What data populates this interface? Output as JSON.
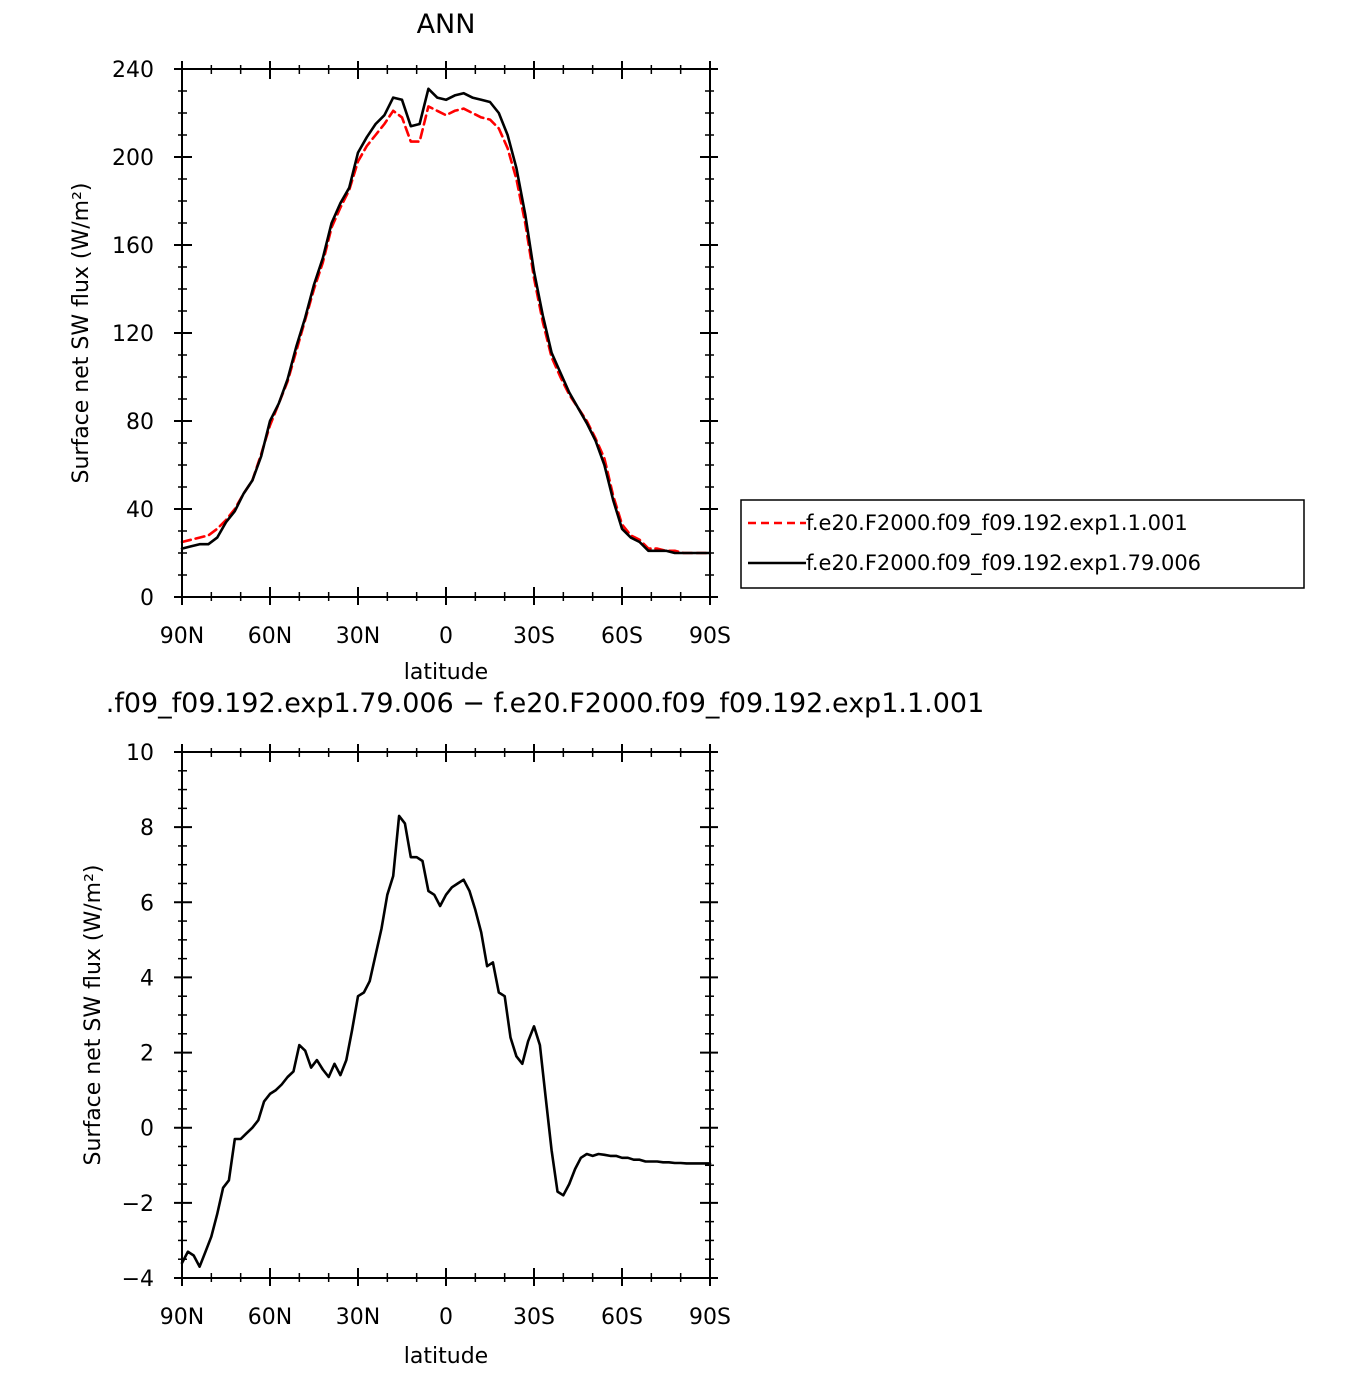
{
  "chart_data": [
    {
      "type": "line",
      "title": "ANN",
      "xlabel": "latitude",
      "ylabel": "Surface net SW flux (W/m²)",
      "x_range": [
        90,
        -90
      ],
      "xticks": [
        "90N",
        "60N",
        "30N",
        "0",
        "30S",
        "60S",
        "90S"
      ],
      "xtick_values": [
        90,
        60,
        30,
        0,
        -30,
        -60,
        -90
      ],
      "ylim": [
        0,
        240
      ],
      "yticks": [
        "0",
        "40",
        "80",
        "120",
        "160",
        "200",
        "240"
      ],
      "ytick_values": [
        0,
        40,
        80,
        120,
        160,
        200,
        240
      ],
      "grid": false,
      "legend_position": "right",
      "series": [
        {
          "name": "f.e20.F2000.f09_f09.192.exp1.1.001",
          "color": "#ff0000",
          "dash": "dashed",
          "x": [
            90,
            87,
            84,
            81,
            78,
            75,
            72,
            69,
            66,
            63,
            60,
            57,
            54,
            51,
            48,
            45,
            42,
            39,
            36,
            33,
            30,
            27,
            24,
            21,
            18,
            15,
            12,
            9,
            6,
            3,
            0,
            -3,
            -6,
            -9,
            -12,
            -15,
            -18,
            -21,
            -24,
            -27,
            -30,
            -33,
            -36,
            -39,
            -42,
            -45,
            -48,
            -51,
            -54,
            -57,
            -60,
            -63,
            -66,
            -69,
            -72,
            -75,
            -78,
            -81,
            -84,
            -87,
            -90
          ],
          "y": [
            25,
            26,
            27,
            28,
            31,
            35,
            40,
            47,
            53,
            65,
            78,
            88,
            98,
            112,
            126,
            140,
            152,
            168,
            177,
            185,
            198,
            205,
            210,
            215,
            221,
            218,
            207,
            207,
            223,
            221,
            219,
            221,
            222,
            220,
            218,
            217,
            213,
            204,
            190,
            170,
            145,
            125,
            109,
            100,
            92,
            86,
            80,
            72,
            63,
            46,
            33,
            28,
            26,
            22,
            22,
            21,
            21,
            20,
            20,
            20,
            20
          ]
        },
        {
          "name": "f.e20.F2000.f09_f09.192.exp1.79.006",
          "color": "#000000",
          "dash": "solid",
          "x": [
            90,
            87,
            84,
            81,
            78,
            75,
            72,
            69,
            66,
            63,
            60,
            57,
            54,
            51,
            48,
            45,
            42,
            39,
            36,
            33,
            30,
            27,
            24,
            21,
            18,
            15,
            12,
            9,
            6,
            3,
            0,
            -3,
            -6,
            -9,
            -12,
            -15,
            -18,
            -21,
            -24,
            -27,
            -30,
            -33,
            -36,
            -39,
            -42,
            -45,
            -48,
            -51,
            -54,
            -57,
            -60,
            -63,
            -66,
            -69,
            -72,
            -75,
            -78,
            -81,
            -84,
            -87,
            -90
          ],
          "y": [
            22,
            23,
            24,
            24,
            27,
            34,
            39,
            47,
            53,
            64,
            80,
            88,
            99,
            114,
            127,
            142,
            154,
            170,
            179,
            186,
            202,
            209,
            215,
            219,
            227,
            226,
            214,
            215,
            231,
            227,
            226,
            228,
            229,
            227,
            226,
            225,
            220,
            210,
            195,
            174,
            148,
            128,
            111,
            102,
            93,
            86,
            79,
            71,
            60,
            44,
            31,
            27,
            25,
            21,
            21,
            21,
            20,
            20,
            20,
            20,
            20
          ]
        }
      ]
    },
    {
      "type": "line",
      "title": ".f09_f09.192.exp1.79.006 − f.e20.F2000.f09_f09.192.exp1.1.001",
      "xlabel": "latitude",
      "ylabel": "Surface net SW flux (W/m²)",
      "x_range": [
        90,
        -90
      ],
      "xticks": [
        "90N",
        "60N",
        "30N",
        "0",
        "30S",
        "60S",
        "90S"
      ],
      "xtick_values": [
        90,
        60,
        30,
        0,
        -30,
        -60,
        -90
      ],
      "ylim": [
        -4,
        10
      ],
      "yticks": [
        "−4",
        "−2",
        "0",
        "2",
        "4",
        "6",
        "8",
        "10"
      ],
      "ytick_values": [
        -4,
        -2,
        0,
        2,
        4,
        6,
        8,
        10
      ],
      "grid": false,
      "series": [
        {
          "color": "#000000",
          "dash": "solid",
          "x": [
            90,
            88,
            86,
            84,
            82,
            80,
            78,
            76,
            74,
            72,
            70,
            68,
            66,
            64,
            62,
            60,
            58,
            56,
            54,
            52,
            50,
            48,
            46,
            44,
            42,
            40,
            38,
            36,
            34,
            32,
            30,
            28,
            26,
            24,
            22,
            20,
            18,
            16,
            14,
            12,
            10,
            8,
            6,
            4,
            2,
            0,
            -2,
            -4,
            -6,
            -8,
            -10,
            -12,
            -14,
            -16,
            -18,
            -20,
            -22,
            -24,
            -26,
            -28,
            -30,
            -32,
            -34,
            -36,
            -38,
            -40,
            -42,
            -44,
            -46,
            -48,
            -50,
            -52,
            -54,
            -56,
            -58,
            -60,
            -62,
            -64,
            -66,
            -68,
            -70,
            -72,
            -74,
            -76,
            -78,
            -80,
            -82,
            -84,
            -86,
            -88,
            -90
          ],
          "y": [
            -3.6,
            -3.3,
            -3.4,
            -3.7,
            -3.3,
            -2.9,
            -2.3,
            -1.6,
            -1.4,
            -0.3,
            -0.3,
            -0.15,
            0.0,
            0.2,
            0.7,
            0.9,
            1.0,
            1.15,
            1.35,
            1.5,
            2.2,
            2.05,
            1.6,
            1.8,
            1.55,
            1.35,
            1.7,
            1.4,
            1.8,
            2.6,
            3.5,
            3.6,
            3.9,
            4.6,
            5.3,
            6.2,
            6.7,
            8.3,
            8.1,
            7.2,
            7.2,
            7.1,
            6.3,
            6.2,
            5.9,
            6.2,
            6.4,
            6.5,
            6.6,
            6.3,
            5.8,
            5.2,
            4.3,
            4.4,
            3.6,
            3.5,
            2.4,
            1.9,
            1.7,
            2.3,
            2.7,
            2.2,
            0.8,
            -0.6,
            -1.7,
            -1.8,
            -1.5,
            -1.1,
            -0.8,
            -0.7,
            -0.75,
            -0.7,
            -0.72,
            -0.75,
            -0.75,
            -0.8,
            -0.8,
            -0.85,
            -0.85,
            -0.9,
            -0.9,
            -0.9,
            -0.92,
            -0.92,
            -0.94,
            -0.94,
            -0.95,
            -0.95,
            -0.95,
            -0.95,
            -0.95
          ]
        }
      ]
    }
  ]
}
